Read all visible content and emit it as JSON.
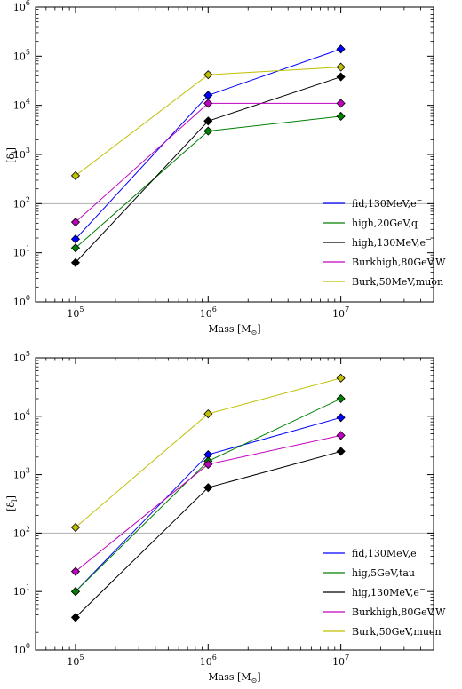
{
  "chart_data": [
    {
      "type": "line",
      "xlabel": "Mass  [M",
      "xlabel_sub": "⊙",
      "xlabel_end": "]",
      "ylabel": "[δ",
      "ylabel_sub": "l",
      "ylabel_end": "]",
      "xscale": "log",
      "yscale": "log",
      "xlim": [
        50000,
        50000000
      ],
      "ylim": [
        1,
        1000000
      ],
      "x": [
        100000,
        1000000,
        10000000
      ],
      "x_ticks": [
        {
          "base": "10",
          "exp": "5"
        },
        {
          "base": "10",
          "exp": "6"
        },
        {
          "base": "10",
          "exp": "7"
        }
      ],
      "y_ticks": [
        {
          "base": "10",
          "exp": "0"
        },
        {
          "base": "10",
          "exp": "1"
        },
        {
          "base": "10",
          "exp": "2"
        },
        {
          "base": "10",
          "exp": "3"
        },
        {
          "base": "10",
          "exp": "4"
        },
        {
          "base": "10",
          "exp": "5"
        },
        {
          "base": "10",
          "exp": "6"
        }
      ],
      "hline": 100,
      "legend_position": "lower-right",
      "series": [
        {
          "name": "fid,130MeV,e",
          "name_sup": "−",
          "color": "#0000ff",
          "values": [
            19,
            16000,
            140000
          ]
        },
        {
          "name": "high,20GeV,q",
          "name_sup": "",
          "color": "#008000",
          "values": [
            12.5,
            3000,
            6000
          ]
        },
        {
          "name": "high,130MeV,e",
          "name_sup": "−",
          "color": "#000000",
          "values": [
            6.3,
            4800,
            38000
          ]
        },
        {
          "name": "Burkhigh,80GeV,W",
          "name_sup": "",
          "color": "#bf00bf",
          "values": [
            42,
            11000,
            11000
          ]
        },
        {
          "name": "Burk,50MeV,muon",
          "name_sup": "",
          "color": "#bfbf00",
          "values": [
            370,
            42000,
            60000
          ]
        }
      ]
    },
    {
      "type": "line",
      "xlabel": "Mass  [M",
      "xlabel_sub": "⊙",
      "xlabel_end": "]",
      "ylabel": "[δ",
      "ylabel_sub": "l",
      "ylabel_end": "]",
      "xscale": "log",
      "yscale": "log",
      "xlim": [
        50000,
        50000000
      ],
      "ylim": [
        1,
        100000
      ],
      "x": [
        100000,
        1000000,
        10000000
      ],
      "x_ticks": [
        {
          "base": "10",
          "exp": "5"
        },
        {
          "base": "10",
          "exp": "6"
        },
        {
          "base": "10",
          "exp": "7"
        }
      ],
      "y_ticks": [
        {
          "base": "10",
          "exp": "0"
        },
        {
          "base": "10",
          "exp": "1"
        },
        {
          "base": "10",
          "exp": "2"
        },
        {
          "base": "10",
          "exp": "3"
        },
        {
          "base": "10",
          "exp": "4"
        },
        {
          "base": "10",
          "exp": "5"
        }
      ],
      "hline": 100,
      "legend_position": "lower-right",
      "series": [
        {
          "name": "fid,130MeV,e",
          "name_sup": "−",
          "color": "#0000ff",
          "values": [
            10,
            2200,
            9500
          ]
        },
        {
          "name": "hig,5GeV,tau",
          "name_sup": "",
          "color": "#008000",
          "values": [
            10,
            1700,
            20000
          ]
        },
        {
          "name": "hig,130MeV,e",
          "name_sup": "−",
          "color": "#000000",
          "values": [
            3.6,
            600,
            2500
          ]
        },
        {
          "name": "Burkhigh,80GeV,W",
          "name_sup": "",
          "color": "#bf00bf",
          "values": [
            22,
            1500,
            4700
          ]
        },
        {
          "name": "Burk,50GeV,muon",
          "name_sup": "",
          "color": "#bfbf00",
          "values": [
            125,
            11000,
            45000
          ]
        }
      ]
    }
  ]
}
